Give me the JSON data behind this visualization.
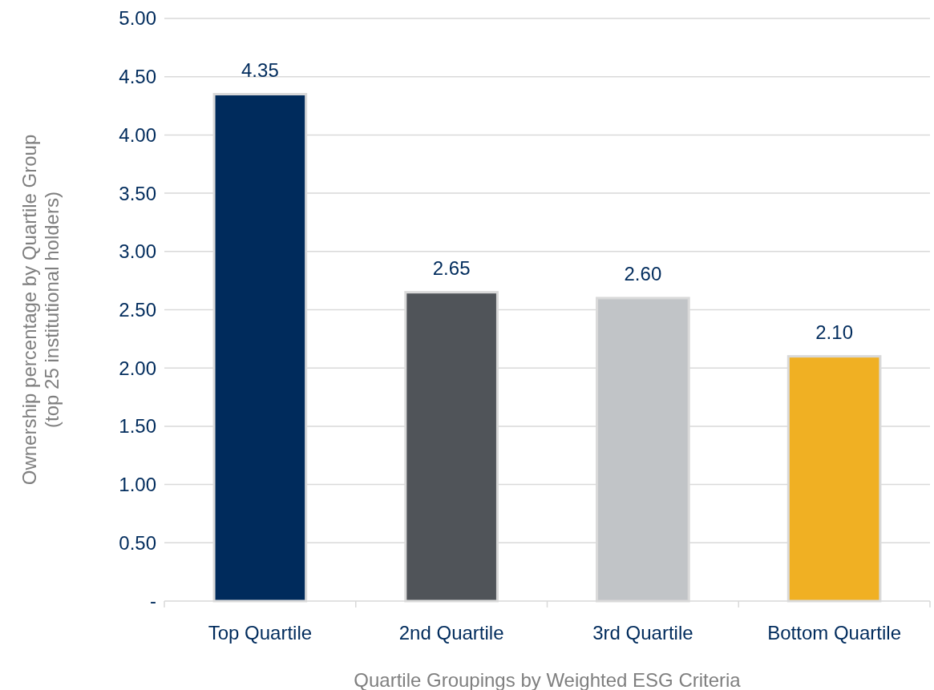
{
  "chart_data": {
    "type": "bar",
    "xlabel": "Quartile Groupings by Weighted ESG Criteria",
    "ylabel": "Ownership percentage by Quartile Group\n(top 25 institutional  holders)",
    "categories": [
      "Top Quartile",
      "2nd Quartile",
      "3rd Quartile",
      "Bottom Quartile"
    ],
    "values": [
      4.35,
      2.65,
      2.6,
      2.1
    ],
    "colors": [
      "#002b5c",
      "#505459",
      "#c1c4c7",
      "#f0b023"
    ],
    "value_labels": [
      "4.35",
      "2.65",
      "2.60",
      "2.10"
    ],
    "ylim": [
      0,
      5
    ],
    "yticks": [
      {
        "value": 0,
        "label": "-"
      },
      {
        "value": 0.5,
        "label": "0.50"
      },
      {
        "value": 1,
        "label": "1.00"
      },
      {
        "value": 1.5,
        "label": "1.50"
      },
      {
        "value": 2,
        "label": "2.00"
      },
      {
        "value": 2.5,
        "label": "2.50"
      },
      {
        "value": 3,
        "label": "3.00"
      },
      {
        "value": 3.5,
        "label": "3.50"
      },
      {
        "value": 4,
        "label": "4.00"
      },
      {
        "value": 4.5,
        "label": "4.50"
      },
      {
        "value": 5,
        "label": "5.00"
      }
    ],
    "grid": "y"
  }
}
